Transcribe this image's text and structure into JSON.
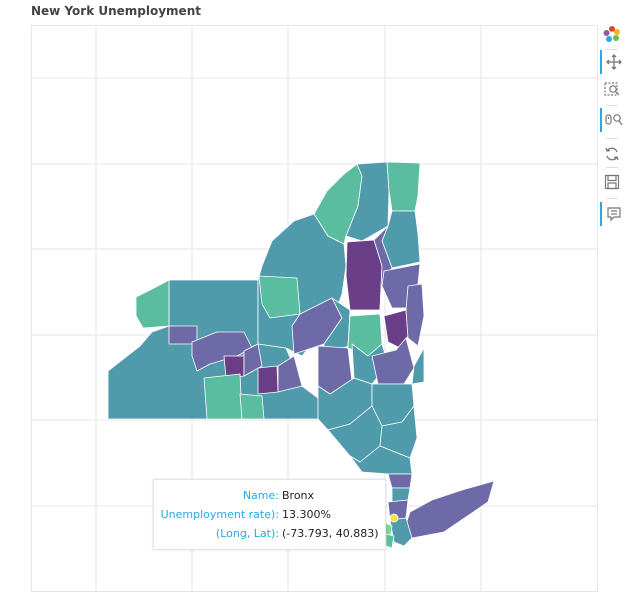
{
  "title": "New York Unemployment",
  "colors": {
    "teal": "#5bbda0",
    "slate": "#4f9bab",
    "indigo": "#6e6aa8",
    "purple": "#6a3f87",
    "green_light": "#7fd49a",
    "yellow": "#f4e34a",
    "grid": "#e5e5e5",
    "accent": "#26aae1"
  },
  "toolbar": [
    {
      "name": "bokeh-logo-icon",
      "active": false
    },
    {
      "name": "pan-icon",
      "active": true
    },
    {
      "name": "box-zoom-icon",
      "active": false
    },
    {
      "name": "wheel-zoom-icon",
      "active": true
    },
    {
      "name": "reset-icon",
      "active": false
    },
    {
      "name": "save-icon",
      "active": false
    },
    {
      "name": "hover-icon",
      "active": true
    }
  ],
  "tooltip": {
    "rows": [
      {
        "label": "Name:",
        "value": "Bronx"
      },
      {
        "label": "Unemployment rate):",
        "value": "13.300%"
      },
      {
        "label": "(Long, Lat):",
        "value": "(-73.793, 40.883)"
      }
    ]
  }
}
